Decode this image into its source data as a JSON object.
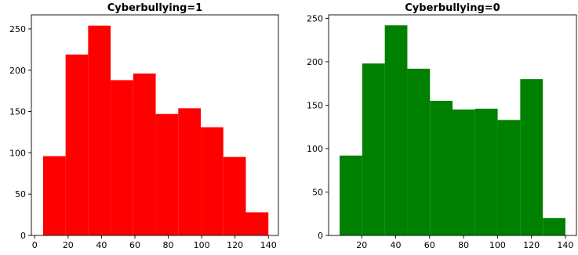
{
  "chart_data": [
    {
      "type": "bar",
      "title": "Cyberbullying=1",
      "xlabel": "",
      "ylabel": "",
      "bar_color": "#ff0000",
      "bins": [
        {
          "x0": 5,
          "x1": 18.5,
          "value": 96
        },
        {
          "x0": 18.5,
          "x1": 32,
          "value": 219
        },
        {
          "x0": 32,
          "x1": 45.5,
          "value": 254
        },
        {
          "x0": 45.5,
          "x1": 59,
          "value": 188
        },
        {
          "x0": 59,
          "x1": 72.5,
          "value": 196
        },
        {
          "x0": 72.5,
          "x1": 86,
          "value": 147
        },
        {
          "x0": 86,
          "x1": 99.5,
          "value": 154
        },
        {
          "x0": 99.5,
          "x1": 113,
          "value": 131
        },
        {
          "x0": 113,
          "x1": 126.5,
          "value": 95
        },
        {
          "x0": 126.5,
          "x1": 140,
          "value": 28
        }
      ],
      "xlim": [
        -2,
        146
      ],
      "ylim": [
        0,
        267
      ],
      "xticks": [
        0,
        20,
        40,
        60,
        80,
        100,
        120,
        140
      ],
      "yticks": [
        0,
        50,
        100,
        150,
        200,
        250
      ],
      "grid": false
    },
    {
      "type": "bar",
      "title": "Cyberbullying=0",
      "xlabel": "",
      "ylabel": "",
      "bar_color": "#008000",
      "bins": [
        {
          "x0": 7,
          "x1": 20.3,
          "value": 92
        },
        {
          "x0": 20.3,
          "x1": 33.6,
          "value": 198
        },
        {
          "x0": 33.6,
          "x1": 46.9,
          "value": 242
        },
        {
          "x0": 46.9,
          "x1": 60.2,
          "value": 192
        },
        {
          "x0": 60.2,
          "x1": 73.5,
          "value": 155
        },
        {
          "x0": 73.5,
          "x1": 86.8,
          "value": 145
        },
        {
          "x0": 86.8,
          "x1": 100.1,
          "value": 146
        },
        {
          "x0": 100.1,
          "x1": 113.4,
          "value": 133
        },
        {
          "x0": 113.4,
          "x1": 126.7,
          "value": 180
        },
        {
          "x0": 126.7,
          "x1": 140,
          "value": 20
        }
      ],
      "xlim": [
        0.5,
        146.5
      ],
      "ylim": [
        0,
        254
      ],
      "xticks": [
        20,
        40,
        60,
        80,
        100,
        120,
        140
      ],
      "yticks": [
        0,
        50,
        100,
        150,
        200,
        250
      ],
      "grid": false
    }
  ]
}
